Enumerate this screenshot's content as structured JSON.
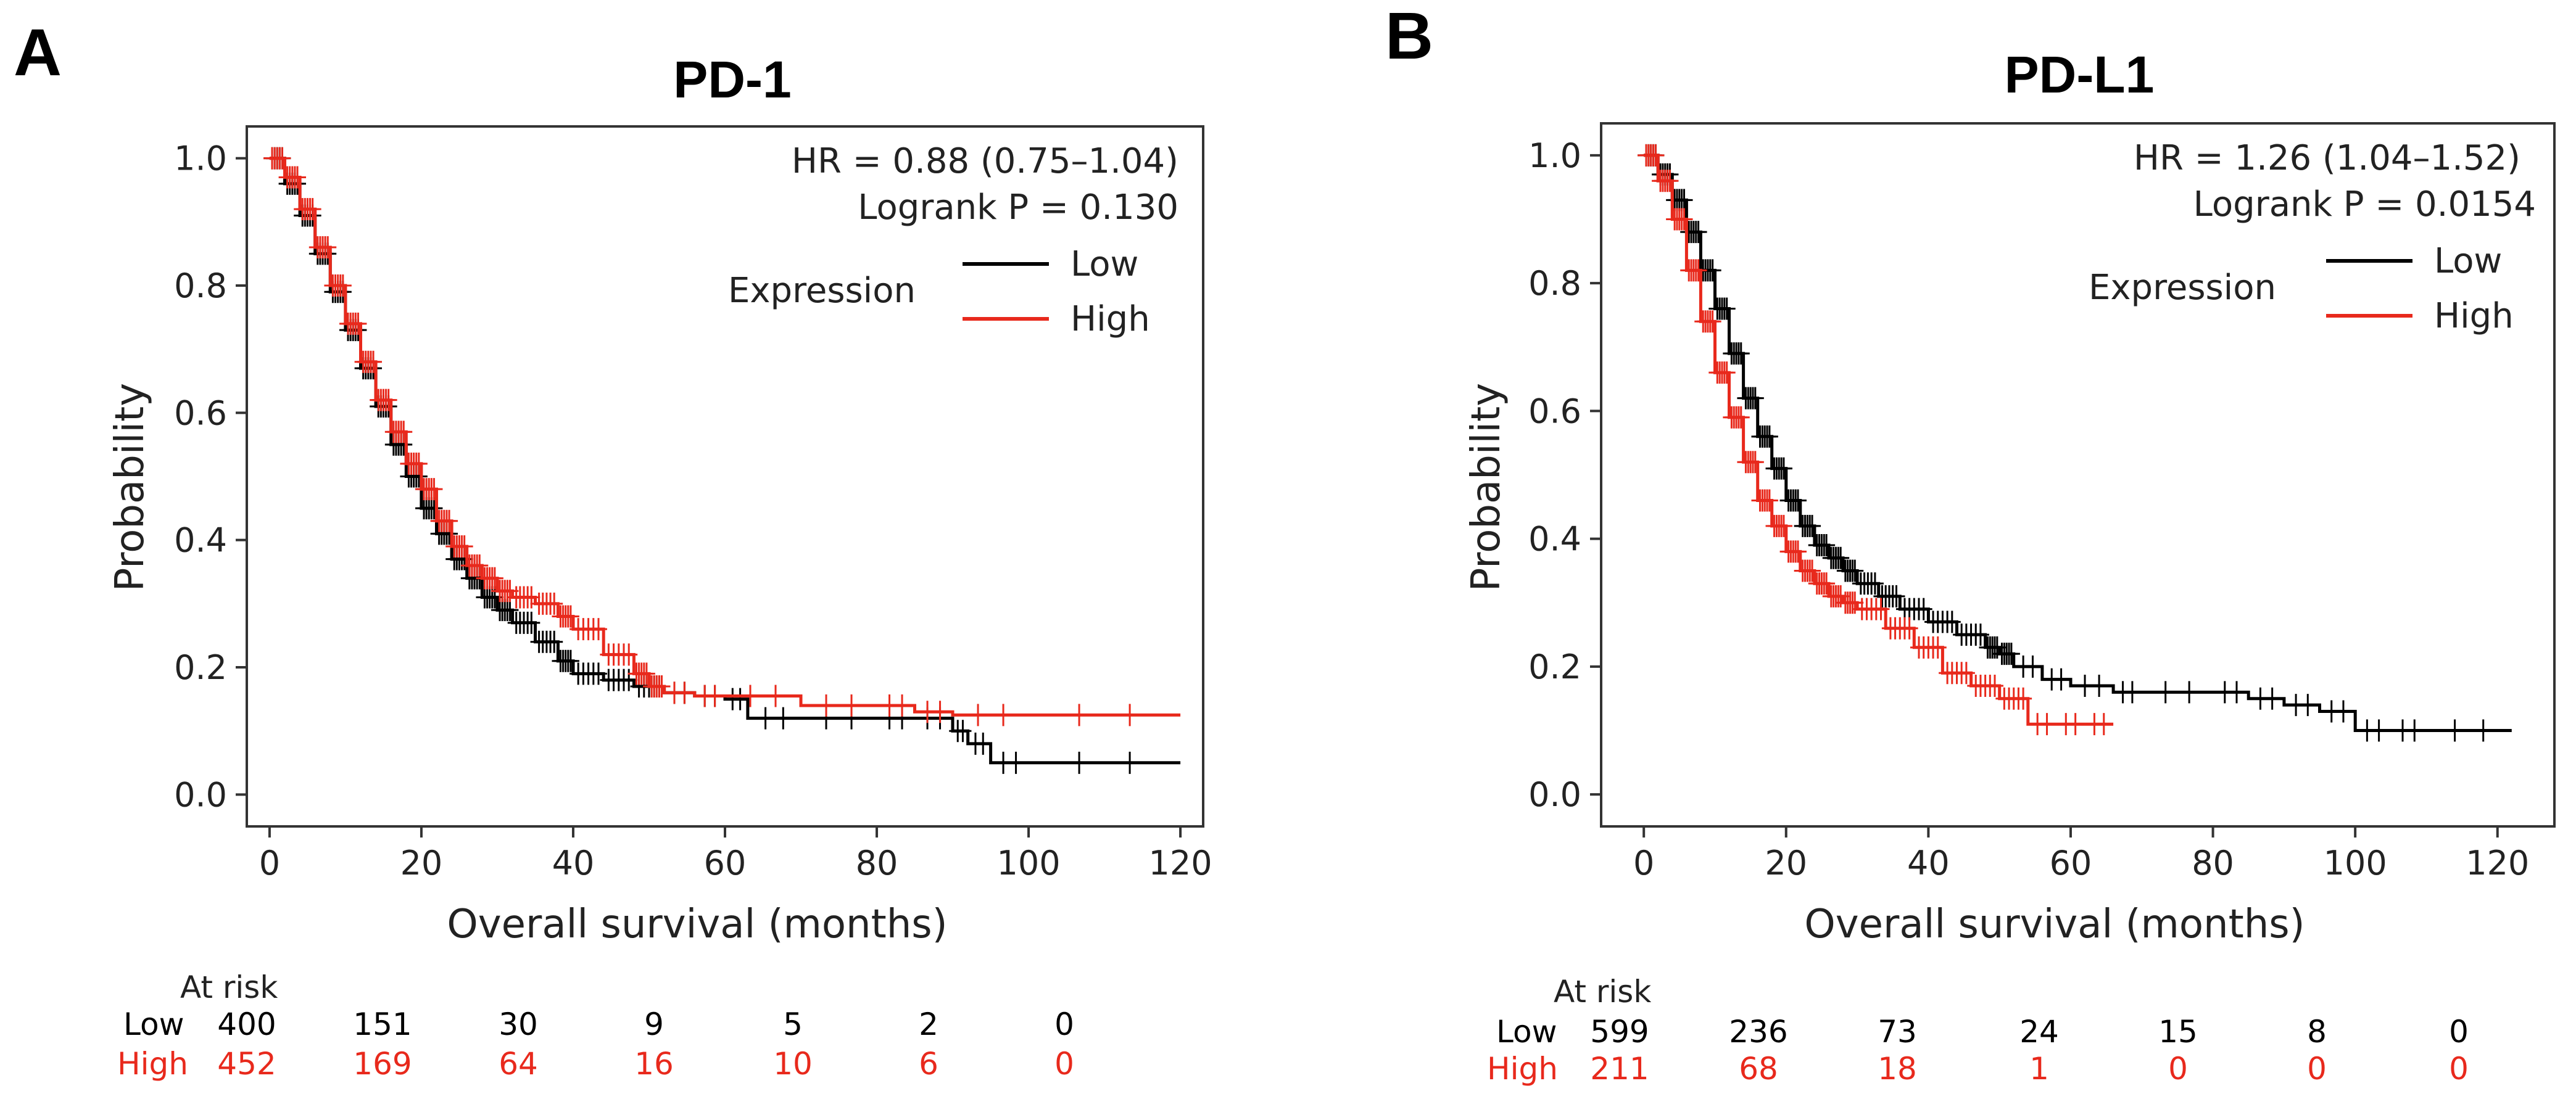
{
  "chart_data": [
    {
      "panel_label": "A",
      "type": "line",
      "title": "PD-1",
      "xlabel": "Overall survival (months)",
      "ylabel": "Probability",
      "xlim": [
        -3,
        123
      ],
      "ylim": [
        -0.05,
        1.05
      ],
      "xticks": [
        0,
        20,
        40,
        60,
        80,
        100,
        120
      ],
      "yticks": [
        0.0,
        0.2,
        0.4,
        0.6,
        0.8,
        1.0
      ],
      "grid": false,
      "annotations": {
        "hr": "HR = 0.88 (0.75–1.04)",
        "logrank": "Logrank P = 0.130"
      },
      "legend": {
        "title": "Expression",
        "placement": "top-right",
        "entries": [
          "Low",
          "High"
        ]
      },
      "series": [
        {
          "name": "Low",
          "color": "#000000",
          "x": [
            0,
            2,
            4,
            6,
            8,
            10,
            12,
            14,
            16,
            18,
            20,
            22,
            24,
            26,
            28,
            30,
            32,
            35,
            38,
            40,
            44,
            48,
            52,
            56,
            60,
            63,
            70,
            80,
            85,
            90,
            92,
            95,
            100,
            120
          ],
          "y": [
            1.0,
            0.96,
            0.91,
            0.85,
            0.79,
            0.73,
            0.67,
            0.61,
            0.55,
            0.5,
            0.45,
            0.41,
            0.37,
            0.34,
            0.31,
            0.29,
            0.27,
            0.24,
            0.21,
            0.19,
            0.18,
            0.17,
            0.16,
            0.155,
            0.15,
            0.12,
            0.12,
            0.12,
            0.12,
            0.1,
            0.08,
            0.05,
            0.05,
            0.05
          ]
        },
        {
          "name": "High",
          "color": "#e8291c",
          "x": [
            0,
            2,
            4,
            6,
            8,
            10,
            12,
            14,
            16,
            18,
            20,
            22,
            24,
            26,
            28,
            30,
            32,
            35,
            38,
            40,
            44,
            48,
            50,
            52,
            56,
            60,
            70,
            80,
            85,
            90,
            100,
            120
          ],
          "y": [
            1.0,
            0.97,
            0.92,
            0.86,
            0.8,
            0.74,
            0.68,
            0.62,
            0.57,
            0.52,
            0.48,
            0.43,
            0.39,
            0.36,
            0.34,
            0.32,
            0.31,
            0.3,
            0.28,
            0.26,
            0.22,
            0.19,
            0.17,
            0.16,
            0.155,
            0.155,
            0.14,
            0.14,
            0.13,
            0.125,
            0.125,
            0.125
          ]
        }
      ],
      "at_risk": {
        "header": "At risk",
        "rows": [
          {
            "label": "Low",
            "color": "#000000",
            "values": [
              "400",
              "151",
              "30",
              "9",
              "5",
              "2",
              "0"
            ]
          },
          {
            "label": "High",
            "color": "#e8291c",
            "values": [
              "452",
              "169",
              "64",
              "16",
              "10",
              "6",
              "0"
            ]
          }
        ]
      }
    },
    {
      "panel_label": "B",
      "type": "line",
      "title": "PD-L1",
      "xlabel": "Overall survival (months)",
      "ylabel": "Probability",
      "xlim": [
        -6,
        128
      ],
      "ylim": [
        -0.05,
        1.05
      ],
      "xticks": [
        0,
        20,
        40,
        60,
        80,
        100,
        120
      ],
      "yticks": [
        0.0,
        0.2,
        0.4,
        0.6,
        0.8,
        1.0
      ],
      "grid": false,
      "annotations": {
        "hr": "HR = 1.26 (1.04–1.52)",
        "logrank": "Logrank P = 0.0154"
      },
      "legend": {
        "title": "Expression",
        "placement": "top-right",
        "entries": [
          "Low",
          "High"
        ]
      },
      "series": [
        {
          "name": "Low",
          "color": "#000000",
          "x": [
            0,
            2,
            4,
            6,
            8,
            10,
            12,
            14,
            16,
            18,
            20,
            22,
            24,
            26,
            28,
            30,
            33,
            36,
            40,
            44,
            48,
            50,
            52,
            56,
            60,
            66,
            70,
            80,
            85,
            90,
            95,
            100,
            105,
            110,
            122
          ],
          "y": [
            1.0,
            0.97,
            0.93,
            0.88,
            0.82,
            0.76,
            0.69,
            0.62,
            0.56,
            0.51,
            0.46,
            0.42,
            0.39,
            0.37,
            0.35,
            0.33,
            0.31,
            0.29,
            0.27,
            0.25,
            0.23,
            0.22,
            0.2,
            0.18,
            0.17,
            0.16,
            0.16,
            0.16,
            0.15,
            0.14,
            0.13,
            0.1,
            0.1,
            0.1,
            0.1
          ]
        },
        {
          "name": "High",
          "color": "#e8291c",
          "x": [
            0,
            2,
            4,
            6,
            8,
            10,
            12,
            14,
            16,
            18,
            20,
            22,
            24,
            26,
            28,
            30,
            34,
            38,
            42,
            46,
            50,
            54,
            58,
            62,
            66
          ],
          "y": [
            1.0,
            0.96,
            0.9,
            0.82,
            0.74,
            0.66,
            0.59,
            0.52,
            0.46,
            0.42,
            0.38,
            0.35,
            0.33,
            0.31,
            0.3,
            0.29,
            0.26,
            0.23,
            0.19,
            0.17,
            0.15,
            0.11,
            0.11,
            0.11,
            0.11
          ]
        }
      ],
      "at_risk": {
        "header": "At risk",
        "rows": [
          {
            "label": "Low",
            "color": "#000000",
            "values": [
              "599",
              "236",
              "73",
              "24",
              "15",
              "8",
              "0"
            ]
          },
          {
            "label": "High",
            "color": "#e8291c",
            "values": [
              "211",
              "68",
              "18",
              "1",
              "0",
              "0",
              "0"
            ]
          }
        ]
      }
    }
  ]
}
